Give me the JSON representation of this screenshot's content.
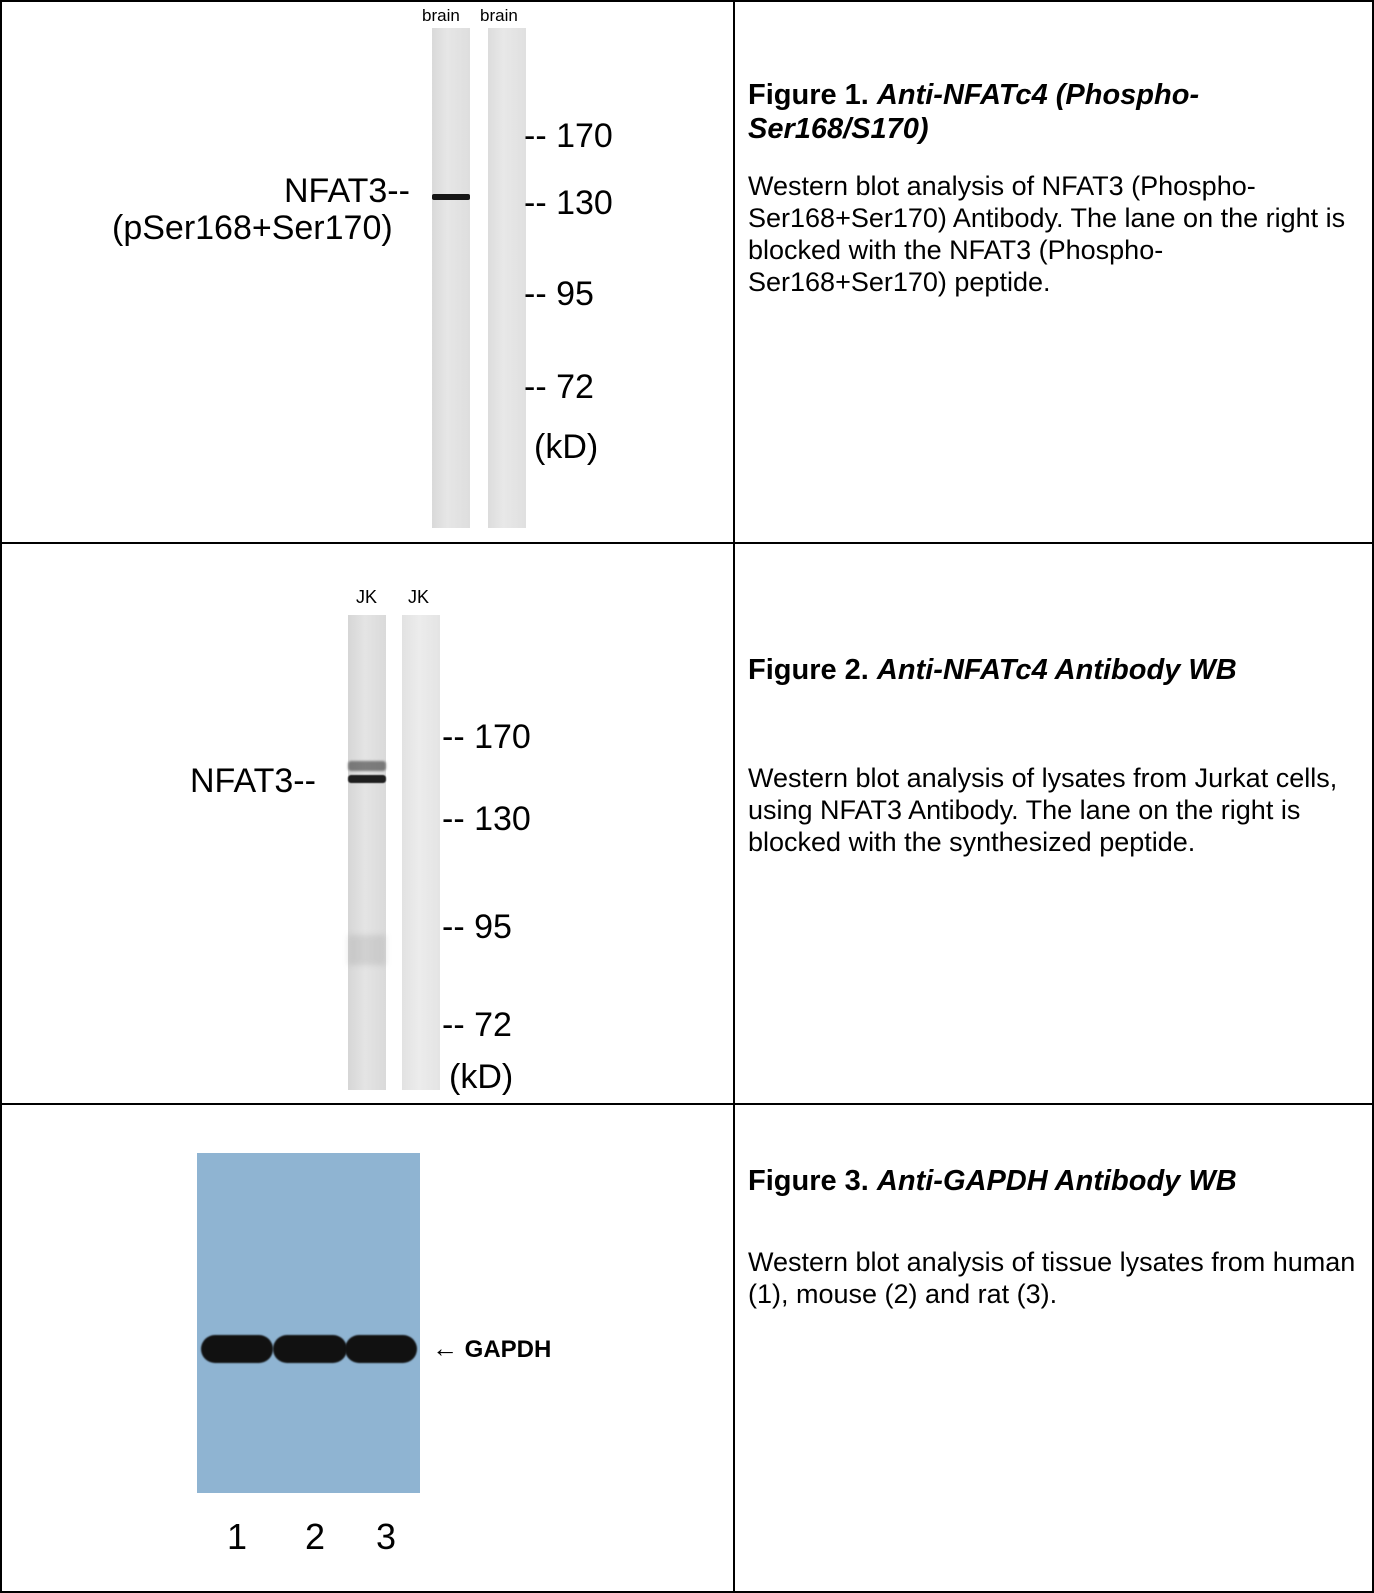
{
  "figures": [
    {
      "title_prefix": "Figure 1.",
      "title_italic": "Anti-NFATc4 (Phospho-Ser168/S170)",
      "description": "Western blot analysis of NFAT3 (Phospho-Ser168+Ser170) Antibody. The lane on the right is blocked with the NFAT3 (Phospho-Ser168+Ser170) peptide.",
      "blot": {
        "lane_labels": [
          "brain",
          "brain"
        ],
        "band_label_line1": "NFAT3--",
        "band_label_line2": "(pSer168+Ser170)",
        "markers": [
          "-- 170",
          "-- 130",
          "-- 95",
          "-- 72"
        ],
        "unit": "(kD)"
      }
    },
    {
      "title_prefix": "Figure 2.",
      "title_italic": "Anti-NFATc4 Antibody WB",
      "description": "Western blot analysis of lysates from Jurkat cells, using NFAT3 Antibody. The lane on the right is blocked with the synthesized peptide.",
      "blot": {
        "lane_labels": [
          "JK",
          "JK"
        ],
        "band_label": "NFAT3--",
        "markers": [
          "-- 170",
          "-- 130",
          "-- 95",
          "-- 72"
        ],
        "unit": "(kD)"
      }
    },
    {
      "title_prefix": "Figure 3.",
      "title_italic": "Anti-GAPDH Antibody WB",
      "description": "Western blot analysis of tissue lysates from human (1), mouse (2) and rat (3).",
      "blot": {
        "band_label": "GAPDH",
        "lane_numbers": [
          "1",
          "2",
          "3"
        ],
        "membrane_color": "#8fb4d2"
      }
    }
  ]
}
